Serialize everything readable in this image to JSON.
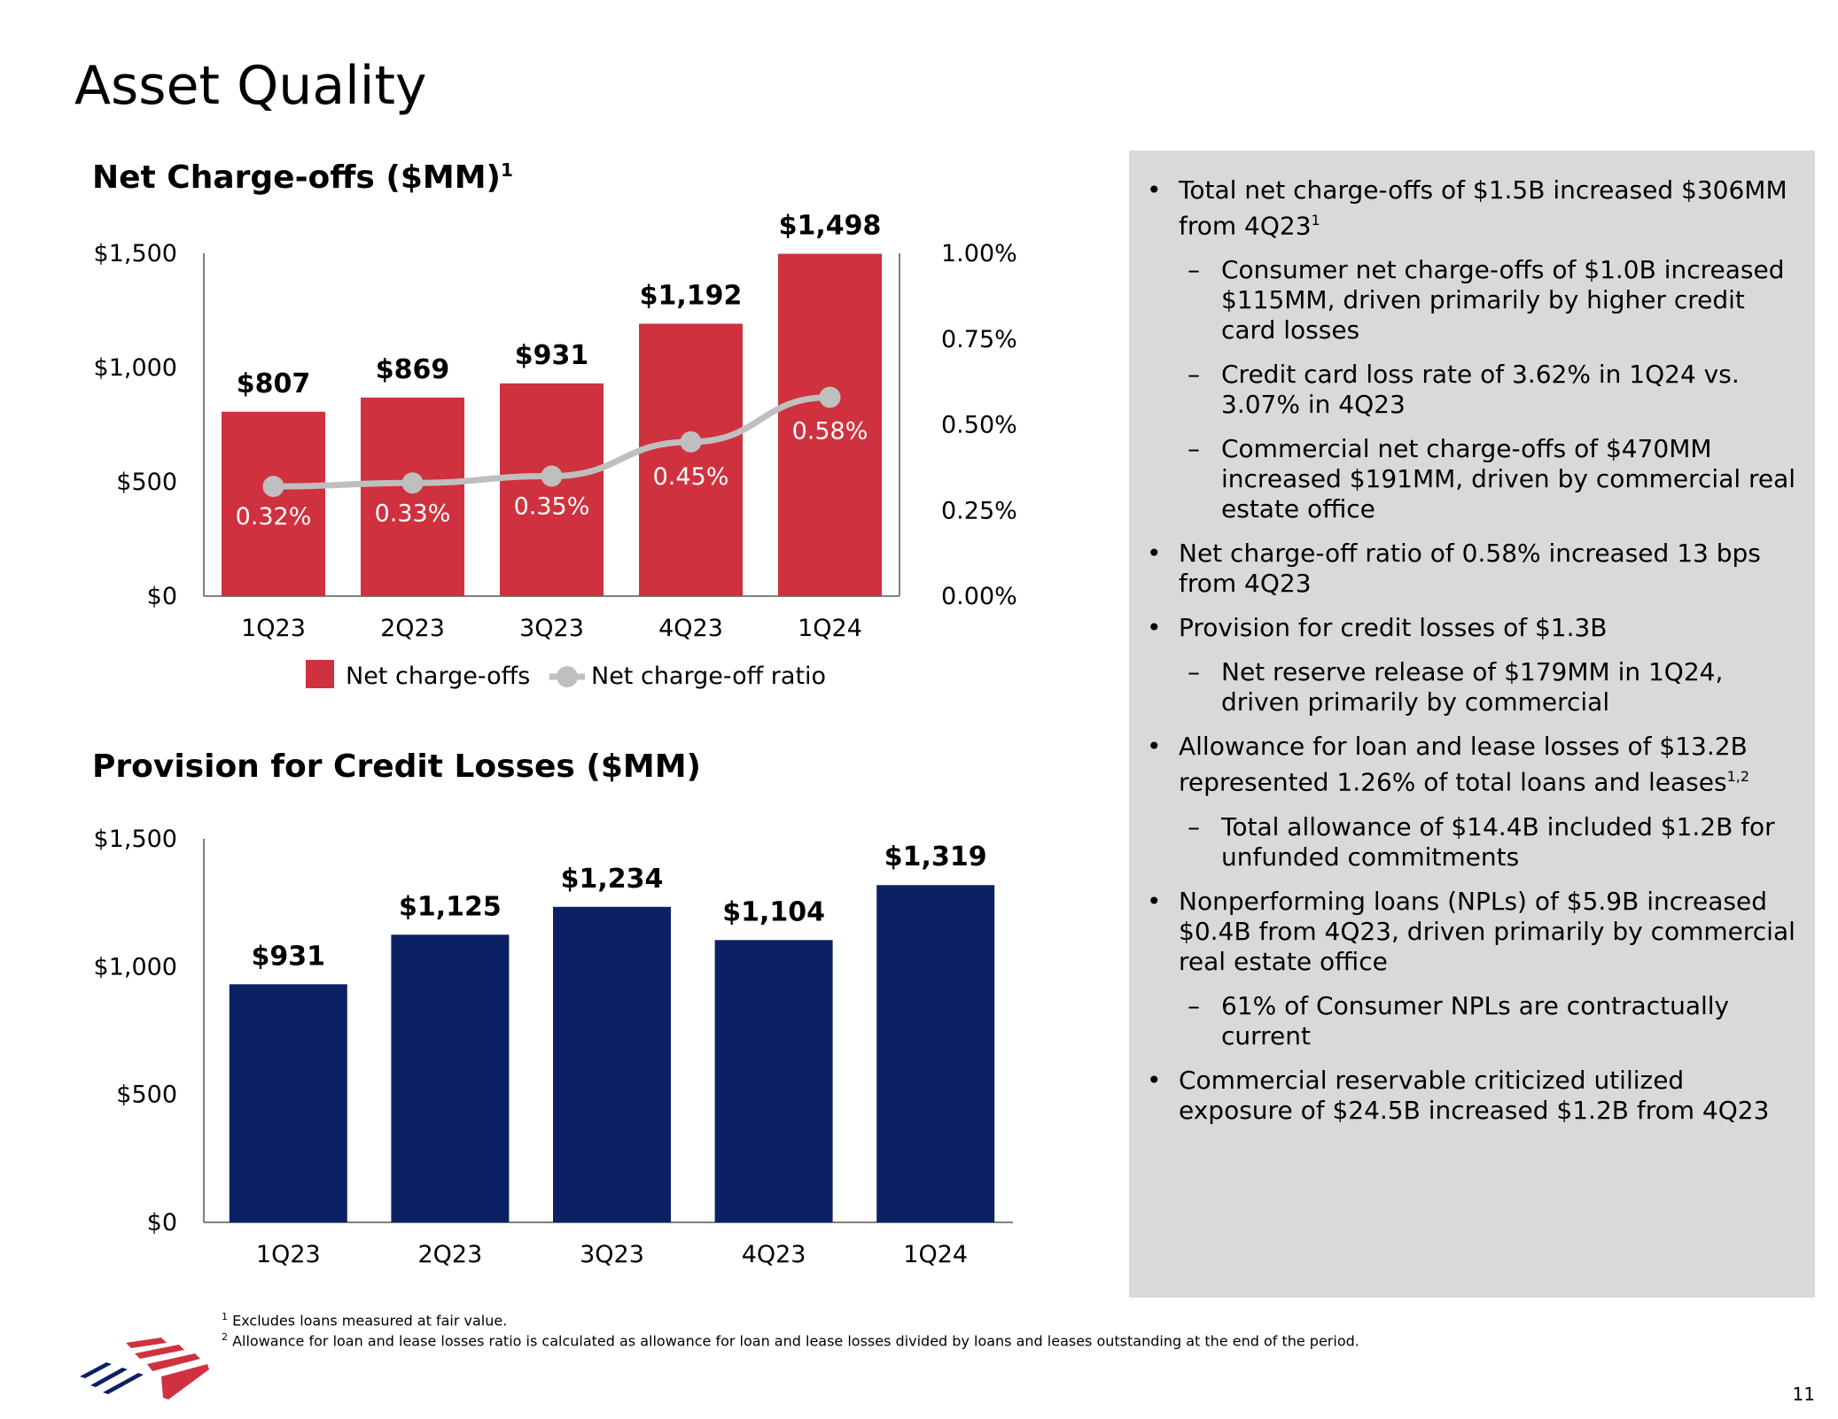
{
  "page": {
    "title": "Asset Quality",
    "page_number": "11",
    "footnotes": [
      {
        "mark": "1",
        "text": "Excludes loans measured at fair value."
      },
      {
        "mark": "2",
        "text": "Allowance for loan and lease losses ratio is calculated as allowance for loan and lease losses divided by loans and leases outstanding at the end of the period."
      }
    ]
  },
  "chart_data": [
    {
      "type": "bar",
      "title": "Net Charge-offs ($MM)",
      "title_superscript": "1",
      "categories": [
        "1Q23",
        "2Q23",
        "3Q23",
        "4Q23",
        "1Q24"
      ],
      "series": [
        {
          "name": "Net charge-offs",
          "type": "bar",
          "axis": "left",
          "values": [
            807,
            869,
            931,
            1192,
            1498
          ],
          "labels": [
            "$807",
            "$869",
            "$931",
            "$1,192",
            "$1,498"
          ],
          "color": "#d0313e"
        },
        {
          "name": "Net charge-off ratio",
          "type": "line",
          "axis": "right",
          "values": [
            0.32,
            0.33,
            0.35,
            0.45,
            0.58
          ],
          "labels": [
            "0.32%",
            "0.33%",
            "0.35%",
            "0.45%",
            "0.58%"
          ],
          "color": "#bfbfbf"
        }
      ],
      "y_left": {
        "ylim": [
          0,
          1500
        ],
        "ticks": [
          0,
          500,
          1000,
          1500
        ],
        "tick_labels": [
          "$0",
          "$500",
          "$1,000",
          "$1,500"
        ]
      },
      "y_right": {
        "ylim": [
          0,
          1.0
        ],
        "ticks": [
          0,
          0.25,
          0.5,
          0.75,
          1.0
        ],
        "tick_labels": [
          "0.00%",
          "0.25%",
          "0.50%",
          "0.75%",
          "1.00%"
        ]
      },
      "legend": {
        "placement": "bottom",
        "entries": [
          "Net charge-offs",
          "Net charge-off ratio"
        ]
      },
      "grid": false
    },
    {
      "type": "bar",
      "title": "Provision for Credit Losses ($MM)",
      "categories": [
        "1Q23",
        "2Q23",
        "3Q23",
        "4Q23",
        "1Q24"
      ],
      "series": [
        {
          "name": "Provision for credit losses",
          "values": [
            931,
            1125,
            1234,
            1104,
            1319
          ],
          "labels": [
            "$931",
            "$1,125",
            "$1,234",
            "$1,104",
            "$1,319"
          ],
          "color": "#0c2163"
        }
      ],
      "y_left": {
        "ylim": [
          0,
          1500
        ],
        "ticks": [
          0,
          500,
          1000,
          1500
        ],
        "tick_labels": [
          "$0",
          "$500",
          "$1,000",
          "$1,500"
        ]
      },
      "grid": false
    }
  ],
  "commentary": [
    {
      "level": 1,
      "text": "Total net charge-offs of $1.5B increased $306MM from 4Q23",
      "sup": "1"
    },
    {
      "level": 2,
      "text": "Consumer net charge-offs of $1.0B increased $115MM, driven primarily by higher credit card losses"
    },
    {
      "level": 2,
      "text": "Credit card loss rate of 3.62% in 1Q24 vs. 3.07% in 4Q23"
    },
    {
      "level": 2,
      "text": "Commercial net charge-offs of $470MM increased $191MM, driven by commercial real estate office"
    },
    {
      "level": 1,
      "text": "Net charge-off ratio of 0.58% increased 13 bps from 4Q23"
    },
    {
      "level": 1,
      "text": "Provision for credit losses of $1.3B"
    },
    {
      "level": 2,
      "text": "Net reserve release of $179MM in 1Q24, driven primarily by commercial"
    },
    {
      "level": 1,
      "text": "Allowance for loan and lease losses of $13.2B represented 1.26% of total loans and leases",
      "sup": "1,2"
    },
    {
      "level": 2,
      "text": "Total allowance of $14.4B included $1.2B for unfunded commitments"
    },
    {
      "level": 1,
      "text": "Nonperforming loans (NPLs) of $5.9B increased $0.4B from 4Q23, driven primarily by commercial real estate office"
    },
    {
      "level": 2,
      "text": "61% of Consumer NPLs are contractually current"
    },
    {
      "level": 1,
      "text": "Commercial reservable criticized utilized exposure of $24.5B increased $1.2B from 4Q23"
    }
  ]
}
